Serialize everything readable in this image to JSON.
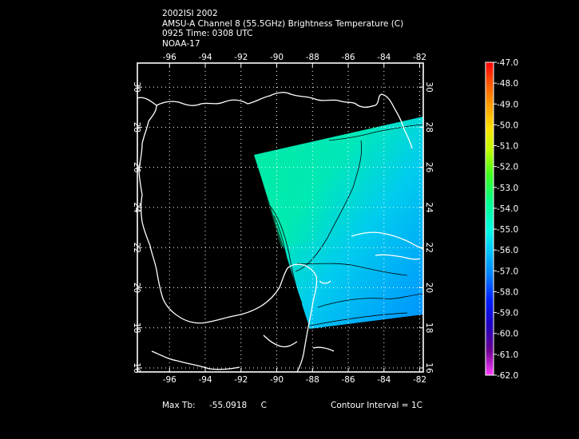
{
  "header": {
    "storm_line": "2002ISI 2002",
    "product_line": "AMSU-A Channel 8 (55.5GHz) Brightness Temperature (C)",
    "time_line": "0925 Time: 0308 UTC",
    "satellite_line": "NOAA-17"
  },
  "map": {
    "lon_ticks": [
      "-96",
      "-94",
      "-92",
      "-90",
      "-88",
      "-86",
      "-84",
      "-82"
    ],
    "lat_ticks": [
      "30",
      "28",
      "26",
      "24",
      "22",
      "20",
      "18",
      "16"
    ],
    "lon_values": [
      -96,
      -94,
      -92,
      -90,
      -88,
      -86,
      -84,
      -82
    ],
    "lat_values": [
      30,
      28,
      26,
      24,
      22,
      20,
      18,
      16
    ],
    "lon_range": [
      -97.8,
      -81.8
    ],
    "lat_range": [
      15.8,
      31.2
    ],
    "grid": "dotted"
  },
  "colorbar": {
    "labels": [
      "-47.0",
      "-48.0",
      "-49.0",
      "-50.0",
      "-51.0",
      "-52.0",
      "-53.0",
      "-54.0",
      "-55.0",
      "-56.0",
      "-57.0",
      "-58.0",
      "-59.0",
      "-60.0",
      "-61.0",
      "-62.0"
    ],
    "max": -47.0,
    "min": -62.0,
    "colors": [
      "#ff0000",
      "#ff6600",
      "#ffb000",
      "#ffee00",
      "#b8ff00",
      "#40ff20",
      "#00ff80",
      "#00ffd0",
      "#00d8ff",
      "#0090ff",
      "#0040ff",
      "#0000d0",
      "#4000b0",
      "#700090",
      "#a000a0",
      "#ff00ff"
    ]
  },
  "footer": {
    "max_label": "Max Tb:",
    "max_value": "-55.0918",
    "max_unit": "C",
    "contour": "Contour Interval = 1C"
  },
  "colors": {
    "background": "#000000",
    "coast": "#ffffff",
    "grid": "#ffffff",
    "swath_main": "#00e6c0",
    "swath_warm": "#00f0a0",
    "swath_cool": "#00aaff",
    "contour": "#000000"
  }
}
